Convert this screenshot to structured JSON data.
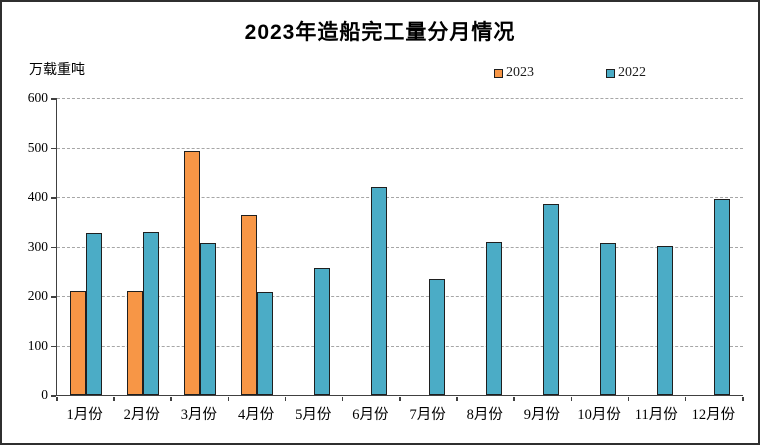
{
  "title": "2023年造船完工量分月情况",
  "y_axis_unit": "万载重吨",
  "legend": {
    "entries": [
      {
        "label": "2023",
        "color": "#F79646"
      },
      {
        "label": "2022",
        "color": "#4BACC6"
      }
    ]
  },
  "chart_data": {
    "type": "bar",
    "title": "2023年造船完工量分月情况",
    "ylabel": "万载重吨",
    "xlabel": "",
    "ylim": [
      0,
      600
    ],
    "ytick_step": 100,
    "yticks": [
      0,
      100,
      200,
      300,
      400,
      500,
      600
    ],
    "grid": "horizontal-dashed",
    "legend_position": "top",
    "categories": [
      "1月份",
      "2月份",
      "3月份",
      "4月份",
      "5月份",
      "6月份",
      "7月份",
      "8月份",
      "9月份",
      "10月份",
      "11月份",
      "12月份"
    ],
    "series": [
      {
        "name": "2023",
        "color": "#F79646",
        "border_color": "#1f1f1f",
        "values": [
          211,
          211,
          492,
          364,
          null,
          null,
          null,
          null,
          null,
          null,
          null,
          null
        ]
      },
      {
        "name": "2022",
        "color": "#4BACC6",
        "border_color": "#1f1f1f",
        "values": [
          327,
          329,
          308,
          209,
          256,
          421,
          234,
          310,
          385,
          308,
          302,
          395
        ]
      }
    ]
  }
}
